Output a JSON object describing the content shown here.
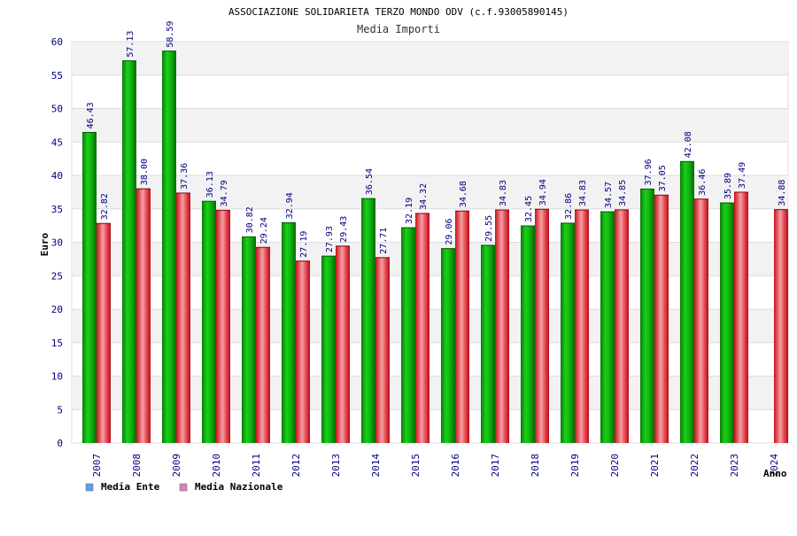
{
  "chart_data": {
    "type": "bar",
    "title": "ASSOCIAZIONE SOLIDARIETA TERZO MONDO ODV (c.f.93005890145)",
    "subtitle": "Media Importi",
    "xlabel": "Anno",
    "ylabel": "Euro",
    "ylim": [
      0,
      60
    ],
    "yticks": [
      "0",
      "5",
      "10",
      "15",
      "20",
      "25",
      "30",
      "35",
      "40",
      "45",
      "50",
      "55",
      "60"
    ],
    "grid": true,
    "legend_position": "bottom-left",
    "categories": [
      "2007",
      "2008",
      "2009",
      "2010",
      "2011",
      "2012",
      "2013",
      "2014",
      "2015",
      "2016",
      "2017",
      "2018",
      "2019",
      "2020",
      "2021",
      "2022",
      "2023",
      "2024"
    ],
    "series": [
      {
        "name": "Media Ente",
        "color": "#00b000",
        "legend_color": "#5f9fe6",
        "values": [
          46.43,
          57.13,
          58.59,
          36.13,
          30.82,
          32.94,
          27.93,
          36.54,
          32.19,
          29.06,
          29.55,
          32.45,
          32.86,
          34.57,
          37.96,
          42.08,
          35.89,
          null
        ],
        "labels": [
          "46.43",
          "57.13",
          "58.59",
          "36.13",
          "30.82",
          "32.94",
          "27.93",
          "36.54",
          "32.19",
          "29.06",
          "29.55",
          "32.45",
          "32.86",
          "34.57",
          "37.96",
          "42.08",
          "35.89",
          ""
        ]
      },
      {
        "name": "Media Nazionale",
        "color": "#e0202a",
        "legend_color": "#d982b8",
        "values": [
          32.82,
          38.0,
          37.36,
          34.79,
          29.24,
          27.19,
          29.43,
          27.71,
          34.32,
          34.68,
          34.83,
          34.94,
          34.83,
          34.85,
          37.05,
          36.46,
          37.49,
          34.88
        ],
        "labels": [
          "32.82",
          "38.00",
          "37.36",
          "34.79",
          "29.24",
          "27.19",
          "29.43",
          "27.71",
          "34.32",
          "34.68",
          "34.83",
          "34.94",
          "34.83",
          "34.85",
          "37.05",
          "36.46",
          "37.49",
          "34.88"
        ]
      }
    ]
  }
}
